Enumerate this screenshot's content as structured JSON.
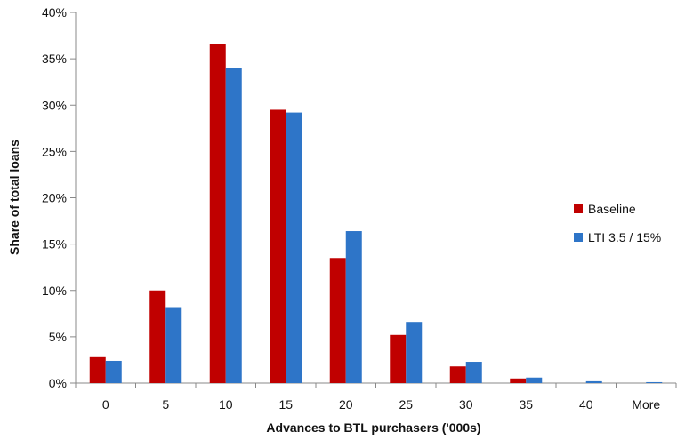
{
  "chart_data": {
    "type": "bar",
    "title": "",
    "xlabel": "Advances to BTL purchasers ('000s)",
    "ylabel": "Share of total loans",
    "categories": [
      "0",
      "5",
      "10",
      "15",
      "20",
      "25",
      "30",
      "35",
      "40",
      "More"
    ],
    "ylim": [
      0,
      40
    ],
    "yticks": [
      "0%",
      "5%",
      "10%",
      "15%",
      "20%",
      "25%",
      "30%",
      "35%",
      "40%"
    ],
    "grid": false,
    "legend_position": "right",
    "series": [
      {
        "name": "Baseline",
        "color": "#c00000",
        "values": [
          2.8,
          10.0,
          36.6,
          29.5,
          13.5,
          5.2,
          1.8,
          0.5,
          0.0,
          0.0
        ]
      },
      {
        "name": "LTI 3.5 / 15%",
        "color": "#2e75c8",
        "values": [
          2.4,
          8.2,
          34.0,
          29.2,
          16.4,
          6.6,
          2.3,
          0.6,
          0.2,
          0.1
        ]
      }
    ]
  }
}
